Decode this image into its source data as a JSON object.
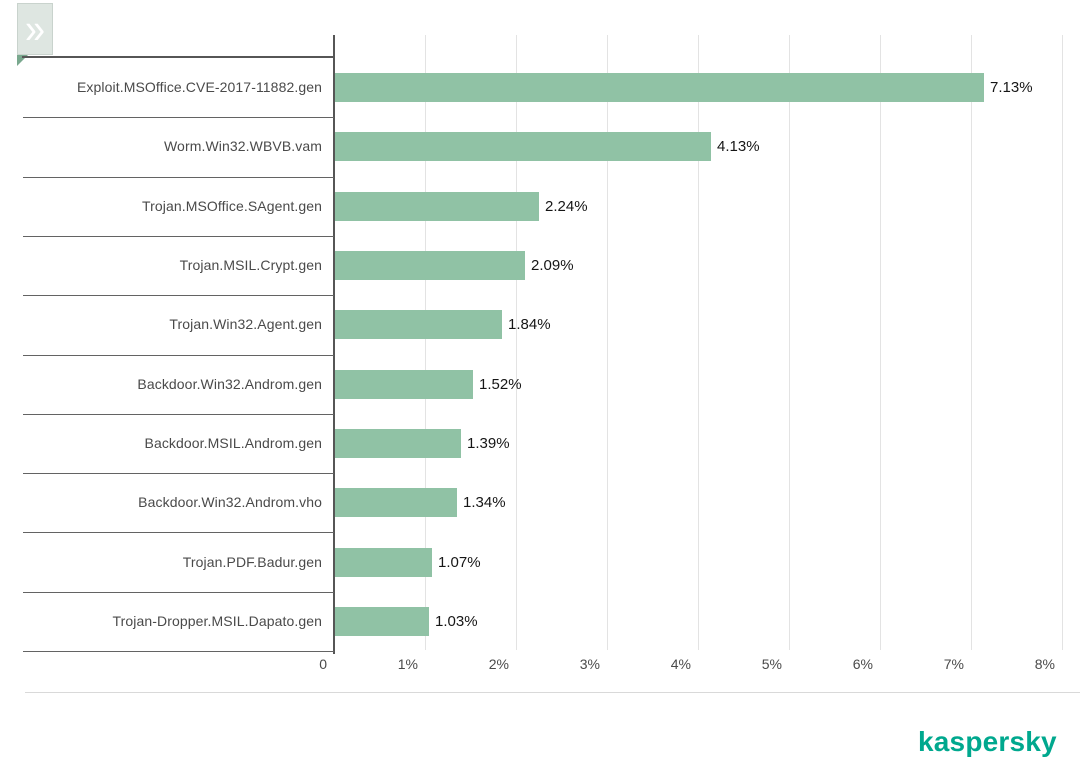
{
  "icons": {
    "expand_glyph": "»"
  },
  "chart_data": {
    "type": "bar",
    "orientation": "horizontal",
    "title": "",
    "xlabel": "",
    "ylabel": "",
    "legend": "none",
    "grid": "vertical-gridlines",
    "xlim": [
      0,
      8
    ],
    "categories": [
      "Exploit.MSOffice.CVE-2017-11882.gen",
      "Worm.Win32.WBVB.vam",
      "Trojan.MSOffice.SAgent.gen",
      "Trojan.MSIL.Crypt.gen",
      "Trojan.Win32.Agent.gen",
      "Backdoor.Win32.Androm.gen",
      "Backdoor.MSIL.Androm.gen",
      "Backdoor.Win32.Androm.vho",
      "Trojan.PDF.Badur.gen",
      "Trojan-Dropper.MSIL.Dapato.gen"
    ],
    "values": [
      7.13,
      4.13,
      2.24,
      2.09,
      1.84,
      1.52,
      1.39,
      1.34,
      1.07,
      1.03
    ],
    "value_labels": [
      "7.13%",
      "4.13%",
      "2.24%",
      "2.09%",
      "1.84%",
      "1.52%",
      "1.39%",
      "1.34%",
      "1.07%",
      "1.03%"
    ],
    "x_tick_labels": [
      "0",
      "1%",
      "2%",
      "3%",
      "4%",
      "5%",
      "6%",
      "7%",
      "8%"
    ],
    "bar_color": "#90c2a5",
    "axis_color": "#565656",
    "gridline_color": "#e3e3e3"
  },
  "footer": {
    "brand": "kaspersky",
    "brand_color": "#00a88e"
  }
}
